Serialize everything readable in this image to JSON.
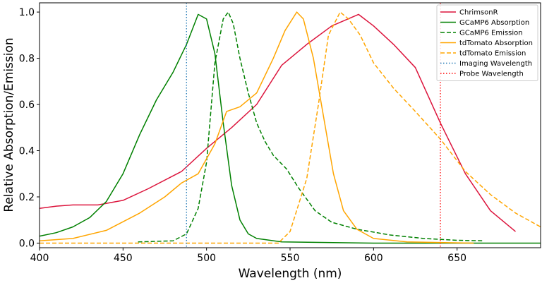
{
  "chart_data": {
    "type": "line",
    "xlabel": "Wavelength (nm)",
    "ylabel": "Relative Absorption/Emission",
    "xlim": [
      400,
      700
    ],
    "ylim": [
      -0.02,
      1.04
    ],
    "xticks": [
      400,
      450,
      500,
      550,
      600,
      650
    ],
    "yticks": [
      0.0,
      0.2,
      0.4,
      0.6,
      0.8,
      1.0
    ],
    "legend_position": "top-right",
    "series": [
      {
        "name": "ChrimsonR",
        "color": "#dc143c",
        "style": "solid",
        "points": [
          [
            400,
            0.15
          ],
          [
            410,
            0.16
          ],
          [
            420,
            0.165
          ],
          [
            435,
            0.165
          ],
          [
            450,
            0.185
          ],
          [
            465,
            0.235
          ],
          [
            485,
            0.31
          ],
          [
            500,
            0.41
          ],
          [
            515,
            0.5
          ],
          [
            530,
            0.6
          ],
          [
            545,
            0.77
          ],
          [
            560,
            0.86
          ],
          [
            575,
            0.94
          ],
          [
            591,
            0.99
          ],
          [
            600,
            0.94
          ],
          [
            612,
            0.86
          ],
          [
            625,
            0.76
          ],
          [
            640,
            0.52
          ],
          [
            655,
            0.3
          ],
          [
            670,
            0.14
          ],
          [
            685,
            0.05
          ]
        ]
      },
      {
        "name": "GCaMP6 Absorption",
        "color": "#008000",
        "style": "solid",
        "points": [
          [
            400,
            0.03
          ],
          [
            410,
            0.045
          ],
          [
            420,
            0.07
          ],
          [
            430,
            0.11
          ],
          [
            440,
            0.18
          ],
          [
            450,
            0.3
          ],
          [
            460,
            0.47
          ],
          [
            470,
            0.62
          ],
          [
            480,
            0.74
          ],
          [
            488,
            0.86
          ],
          [
            495,
            0.99
          ],
          [
            500,
            0.97
          ],
          [
            505,
            0.82
          ],
          [
            510,
            0.52
          ],
          [
            515,
            0.25
          ],
          [
            520,
            0.1
          ],
          [
            525,
            0.04
          ],
          [
            530,
            0.02
          ],
          [
            545,
            0.005
          ],
          [
            600,
            0.0
          ],
          [
            700,
            0.0
          ]
        ]
      },
      {
        "name": "GCaMP6 Emission",
        "color": "#008000",
        "style": "dashed",
        "points": [
          [
            459,
            0.005
          ],
          [
            480,
            0.01
          ],
          [
            488,
            0.04
          ],
          [
            495,
            0.15
          ],
          [
            500,
            0.35
          ],
          [
            505,
            0.78
          ],
          [
            510,
            0.97
          ],
          [
            513,
            1.0
          ],
          [
            516,
            0.95
          ],
          [
            520,
            0.8
          ],
          [
            525,
            0.65
          ],
          [
            530,
            0.52
          ],
          [
            535,
            0.44
          ],
          [
            540,
            0.38
          ],
          [
            548,
            0.32
          ],
          [
            555,
            0.24
          ],
          [
            565,
            0.14
          ],
          [
            575,
            0.09
          ],
          [
            590,
            0.06
          ],
          [
            610,
            0.035
          ],
          [
            630,
            0.02
          ],
          [
            650,
            0.012
          ],
          [
            666,
            0.01
          ]
        ]
      },
      {
        "name": "tdTomato Absorption",
        "color": "#ffa500",
        "style": "solid",
        "points": [
          [
            400,
            0.01
          ],
          [
            420,
            0.02
          ],
          [
            440,
            0.055
          ],
          [
            460,
            0.13
          ],
          [
            475,
            0.2
          ],
          [
            485,
            0.26
          ],
          [
            495,
            0.3
          ],
          [
            505,
            0.43
          ],
          [
            512,
            0.57
          ],
          [
            520,
            0.59
          ],
          [
            530,
            0.65
          ],
          [
            540,
            0.8
          ],
          [
            547,
            0.92
          ],
          [
            554,
            1.0
          ],
          [
            558,
            0.97
          ],
          [
            564,
            0.8
          ],
          [
            570,
            0.55
          ],
          [
            576,
            0.3
          ],
          [
            582,
            0.14
          ],
          [
            590,
            0.06
          ],
          [
            600,
            0.02
          ],
          [
            620,
            0.005
          ],
          [
            660,
            0.0
          ]
        ]
      },
      {
        "name": "tdTomato Emission",
        "color": "#ffa500",
        "style": "dashed",
        "points": [
          [
            400,
            0.0
          ],
          [
            543,
            0.0
          ],
          [
            550,
            0.05
          ],
          [
            560,
            0.28
          ],
          [
            567,
            0.6
          ],
          [
            573,
            0.9
          ],
          [
            580,
            1.0
          ],
          [
            585,
            0.97
          ],
          [
            592,
            0.9
          ],
          [
            600,
            0.78
          ],
          [
            612,
            0.67
          ],
          [
            625,
            0.57
          ],
          [
            640,
            0.45
          ],
          [
            655,
            0.31
          ],
          [
            670,
            0.21
          ],
          [
            685,
            0.13
          ],
          [
            700,
            0.07
          ]
        ]
      },
      {
        "name": "Imaging Wavelength",
        "color": "#1f77b4",
        "style": "dotted",
        "vline": 488
      },
      {
        "name": "Probe Wavelength",
        "color": "#ff0000",
        "style": "dotted",
        "vline": 640
      }
    ]
  }
}
